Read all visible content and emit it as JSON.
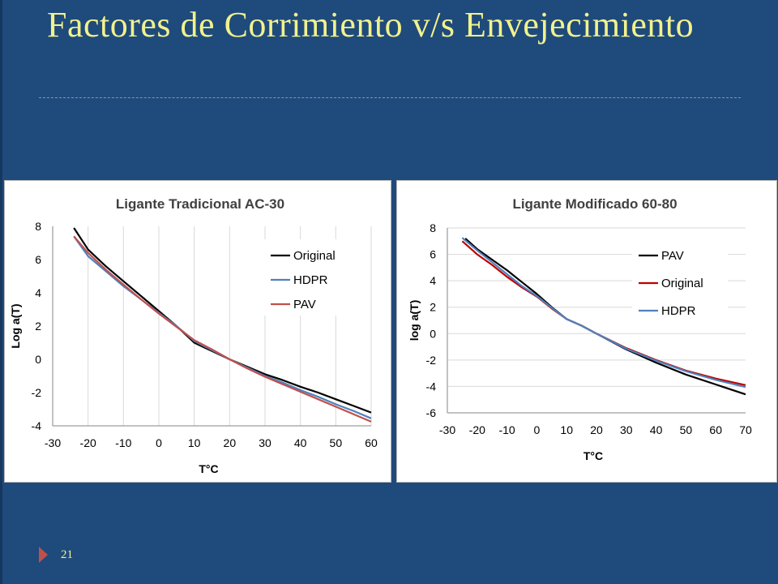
{
  "slide": {
    "title": "Factores de Corrimiento v/s Envejecimiento",
    "page_number": "21",
    "colors": {
      "background": "#1f4a7c",
      "title": "#f2f28c",
      "accent": "#c0504d"
    }
  },
  "chart_data": [
    {
      "type": "line",
      "title": "Ligante Tradicional AC-30",
      "xlabel": "T°C",
      "ylabel": "Log a(T)",
      "xlim": [
        -30,
        60
      ],
      "ylim": [
        -4,
        8
      ],
      "xticks": [
        -30,
        -20,
        -10,
        0,
        10,
        20,
        30,
        40,
        50,
        60
      ],
      "yticks": [
        -4,
        -2,
        0,
        2,
        4,
        6,
        8
      ],
      "grid": "vertical",
      "legend": "right",
      "series": [
        {
          "name": "Original",
          "color": "#000000",
          "x": [
            -24,
            -20,
            -15,
            -10,
            -5,
            0,
            5,
            10,
            15,
            20,
            25,
            30,
            35,
            40,
            45,
            50,
            55,
            60
          ],
          "y": [
            7.9,
            6.6,
            5.6,
            4.7,
            3.8,
            2.9,
            2.0,
            1.0,
            0.5,
            0.0,
            -0.45,
            -0.9,
            -1.25,
            -1.65,
            -2.0,
            -2.4,
            -2.8,
            -3.2
          ]
        },
        {
          "name": "HDPR",
          "color": "#4f81bd",
          "x": [
            -24,
            -20,
            -15,
            -10,
            -5,
            0,
            5,
            10,
            15,
            20,
            25,
            30,
            35,
            40,
            45,
            50,
            55,
            60
          ],
          "y": [
            7.4,
            6.2,
            5.3,
            4.4,
            3.6,
            2.8,
            2.0,
            1.1,
            0.55,
            0.0,
            -0.5,
            -1.0,
            -1.4,
            -1.85,
            -2.25,
            -2.7,
            -3.1,
            -3.55
          ]
        },
        {
          "name": "PAV",
          "color": "#c0504d",
          "x": [
            -24,
            -20,
            -15,
            -10,
            -5,
            0,
            5,
            10,
            15,
            20,
            25,
            30,
            35,
            40,
            45,
            50,
            55,
            60
          ],
          "y": [
            7.4,
            6.4,
            5.4,
            4.5,
            3.6,
            2.75,
            1.95,
            1.15,
            0.6,
            0.0,
            -0.55,
            -1.05,
            -1.5,
            -1.95,
            -2.4,
            -2.85,
            -3.3,
            -3.75
          ]
        }
      ]
    },
    {
      "type": "line",
      "title": "Ligante Modificado 60-80",
      "xlabel": "T°C",
      "ylabel": "log a(T)",
      "xlim": [
        -30,
        70
      ],
      "ylim": [
        -6,
        8
      ],
      "xticks": [
        -30,
        -20,
        -10,
        0,
        10,
        20,
        30,
        40,
        50,
        60,
        70
      ],
      "yticks": [
        -6,
        -4,
        -2,
        0,
        2,
        4,
        6,
        8
      ],
      "grid": "horizontal",
      "legend": "right",
      "series": [
        {
          "name": "PAV",
          "color": "#000000",
          "x": [
            -24,
            -20,
            -15,
            -10,
            -5,
            0,
            5,
            10,
            15,
            20,
            30,
            40,
            50,
            60,
            70
          ],
          "y": [
            7.2,
            6.4,
            5.6,
            4.8,
            3.9,
            3.0,
            2.0,
            1.1,
            0.6,
            0.0,
            -1.2,
            -2.2,
            -3.1,
            -3.85,
            -4.6
          ]
        },
        {
          "name": "Original",
          "color": "#c00000",
          "x": [
            -25,
            -20,
            -15,
            -10,
            -5,
            0,
            5,
            10,
            15,
            20,
            30,
            40,
            50,
            60,
            70
          ],
          "y": [
            7.0,
            6.0,
            5.2,
            4.3,
            3.5,
            2.8,
            1.9,
            1.1,
            0.6,
            0.0,
            -1.1,
            -2.0,
            -2.8,
            -3.4,
            -3.9
          ]
        },
        {
          "name": "HDPR",
          "color": "#4f81bd",
          "x": [
            -25,
            -20,
            -15,
            -10,
            -5,
            0,
            5,
            10,
            15,
            20,
            30,
            40,
            50,
            60,
            70
          ],
          "y": [
            7.25,
            6.3,
            5.4,
            4.5,
            3.6,
            2.85,
            1.95,
            1.1,
            0.6,
            0.0,
            -1.15,
            -2.05,
            -2.85,
            -3.5,
            -4.05
          ]
        }
      ]
    }
  ]
}
